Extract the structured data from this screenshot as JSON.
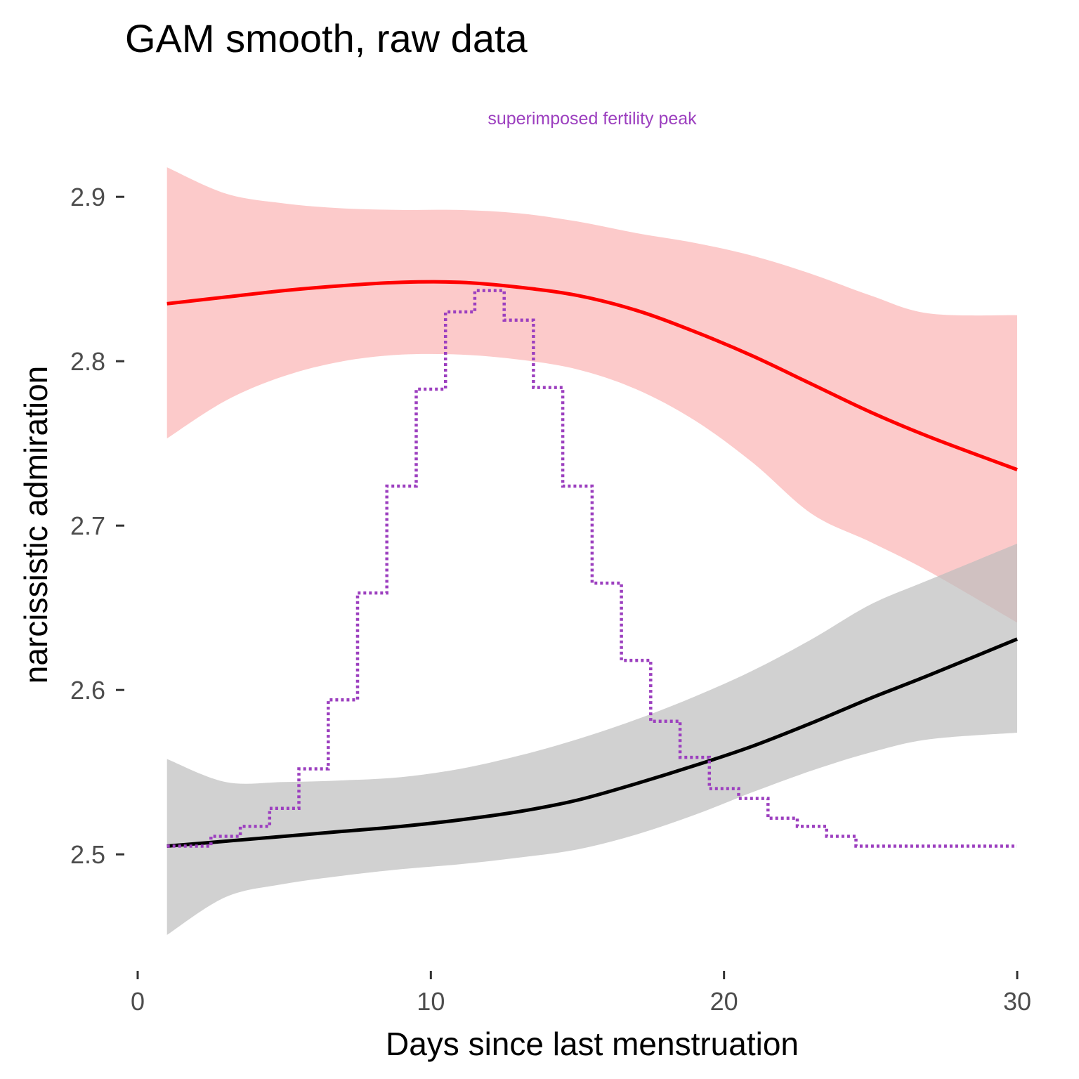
{
  "chart_data": {
    "type": "line",
    "title": "GAM smooth, raw data",
    "xlabel": "Days since last menstruation",
    "ylabel": "narcissistic admiration",
    "xlim": [
      0,
      30
    ],
    "ylim": [
      2.43,
      2.93
    ],
    "x_ticks": [
      0,
      10,
      20,
      30
    ],
    "x_tick_labels": [
      "0",
      "10",
      "20",
      "30"
    ],
    "y_ticks": [
      2.5,
      2.6,
      2.7,
      2.8,
      2.9
    ],
    "y_tick_labels": [
      "2.5",
      "2.6",
      "2.7",
      "2.8",
      "2.9"
    ],
    "grid": false,
    "legend": "none",
    "annotation": {
      "text": "superimposed fertility peak",
      "color": "#9c3fbf"
    },
    "series": [
      {
        "color": "#ff0000",
        "ribbon_color": "#fbb4b4",
        "x": [
          1,
          3,
          5,
          7,
          9,
          11,
          13,
          15,
          17,
          19,
          21,
          23,
          25,
          27,
          30
        ],
        "y": [
          2.835,
          2.839,
          2.843,
          2.846,
          2.848,
          2.848,
          2.845,
          2.84,
          2.831,
          2.818,
          2.803,
          2.786,
          2.769,
          2.754,
          2.734
        ],
        "lower": [
          2.753,
          2.776,
          2.791,
          2.8,
          2.804,
          2.804,
          2.801,
          2.795,
          2.783,
          2.764,
          2.738,
          2.707,
          2.69,
          2.672,
          2.641
        ],
        "upper": [
          2.918,
          2.902,
          2.896,
          2.893,
          2.892,
          2.892,
          2.89,
          2.885,
          2.878,
          2.872,
          2.864,
          2.853,
          2.84,
          2.829,
          2.828
        ]
      },
      {
        "color": "#000000",
        "ribbon_color": "#bdbdbd",
        "x": [
          1,
          3,
          5,
          7,
          9,
          11,
          13,
          15,
          17,
          19,
          21,
          23,
          25,
          27,
          30
        ],
        "y": [
          2.505,
          2.508,
          2.511,
          2.514,
          2.517,
          2.521,
          2.526,
          2.533,
          2.543,
          2.554,
          2.566,
          2.58,
          2.595,
          2.609,
          2.631
        ],
        "lower": [
          2.451,
          2.474,
          2.482,
          2.487,
          2.491,
          2.494,
          2.498,
          2.503,
          2.512,
          2.524,
          2.538,
          2.551,
          2.562,
          2.57,
          2.574
        ],
        "upper": [
          2.558,
          2.544,
          2.544,
          2.545,
          2.547,
          2.552,
          2.56,
          2.57,
          2.582,
          2.596,
          2.612,
          2.631,
          2.652,
          2.667,
          2.689
        ]
      },
      {
        "color": "#9c3fbf",
        "linestyle": "dotted",
        "step": true,
        "x": [
          1,
          2,
          3,
          4,
          5,
          6,
          7,
          8,
          9,
          10,
          11,
          12,
          13,
          14,
          15,
          16,
          17,
          18,
          19,
          20,
          21,
          22,
          23,
          24,
          25,
          26,
          27,
          28,
          29,
          30
        ],
        "y": [
          2.505,
          2.505,
          2.511,
          2.517,
          2.528,
          2.552,
          2.594,
          2.659,
          2.724,
          2.783,
          2.83,
          2.843,
          2.825,
          2.784,
          2.724,
          2.665,
          2.618,
          2.581,
          2.559,
          2.54,
          2.534,
          2.522,
          2.517,
          2.511,
          2.505,
          2.505,
          2.505,
          2.505,
          2.505,
          2.505
        ]
      }
    ]
  }
}
